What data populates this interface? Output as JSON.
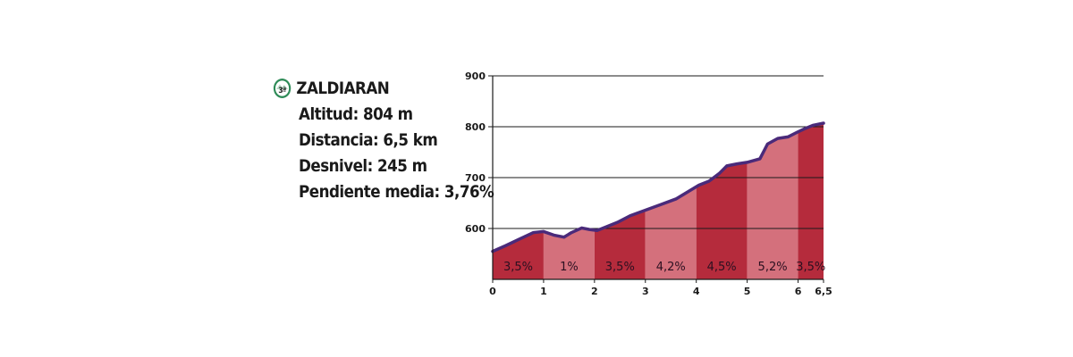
{
  "climb": {
    "category": "3ª",
    "name": "ZALDIARAN",
    "lines": [
      "Altitud: 804 m",
      "Distancia: 6,5 km",
      "Desnivel: 245 m",
      "Pendiente media: 3,76%"
    ]
  },
  "colors": {
    "dark_segment": "#b52b3c",
    "light_segment": "#d4707c",
    "profile_line": "#4a2a7a",
    "badge_ring": "#2e8b57"
  },
  "chart_data": {
    "type": "area",
    "xlim": [
      0,
      6.5
    ],
    "ylim": [
      500,
      900
    ],
    "x_ticks": [
      {
        "value": 0,
        "label": "0"
      },
      {
        "value": 1,
        "label": "1"
      },
      {
        "value": 2,
        "label": "2"
      },
      {
        "value": 3,
        "label": "3"
      },
      {
        "value": 4,
        "label": "4"
      },
      {
        "value": 5,
        "label": "5"
      },
      {
        "value": 6,
        "label": "6"
      },
      {
        "value": 6.5,
        "label": "6,5"
      }
    ],
    "y_ticks": [
      {
        "value": 600,
        "label": "600"
      },
      {
        "value": 700,
        "label": "700"
      },
      {
        "value": 800,
        "label": "800"
      },
      {
        "value": 900,
        "label": "900"
      }
    ],
    "grid": true,
    "profile": {
      "x": [
        0,
        0.25,
        0.5,
        0.8,
        1.0,
        1.2,
        1.4,
        1.55,
        1.75,
        1.9,
        2.05,
        2.2,
        2.45,
        2.7,
        3.0,
        3.3,
        3.6,
        3.85,
        4.05,
        4.25,
        4.45,
        4.6,
        4.8,
        5.0,
        5.25,
        5.4,
        5.6,
        5.8,
        6.0,
        6.15,
        6.3,
        6.5
      ],
      "y": [
        555,
        566,
        578,
        592,
        594,
        587,
        583,
        592,
        601,
        598,
        596,
        602,
        612,
        625,
        636,
        647,
        658,
        673,
        685,
        693,
        708,
        723,
        727,
        730,
        737,
        766,
        777,
        780,
        790,
        797,
        803,
        807
      ]
    },
    "segments": [
      {
        "x_start": 0,
        "x_end": 1,
        "gradient": "3,5%",
        "tone": "dark"
      },
      {
        "x_start": 1,
        "x_end": 2,
        "gradient": "1%",
        "tone": "light"
      },
      {
        "x_start": 2,
        "x_end": 3,
        "gradient": "3,5%",
        "tone": "dark"
      },
      {
        "x_start": 3,
        "x_end": 4,
        "gradient": "4,2%",
        "tone": "light"
      },
      {
        "x_start": 4,
        "x_end": 5,
        "gradient": "4,5%",
        "tone": "dark"
      },
      {
        "x_start": 5,
        "x_end": 6,
        "gradient": "5,2%",
        "tone": "light"
      },
      {
        "x_start": 6,
        "x_end": 6.5,
        "gradient": "3,5%",
        "tone": "dark"
      }
    ]
  }
}
